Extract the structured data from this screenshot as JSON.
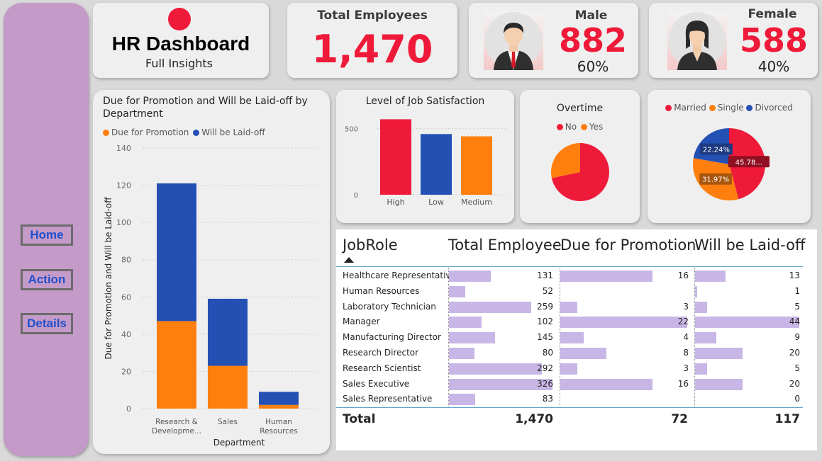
{
  "nav": {
    "home": "Home",
    "action": "Action",
    "details": "Details"
  },
  "header": {
    "title": "HR Dashboard",
    "subtitle": "Full Insights"
  },
  "kpi": {
    "total_label": "Total Employees",
    "total_value": "1,470",
    "male_label": "Male",
    "male_value": "882",
    "male_pct": "60%",
    "female_label": "Female",
    "female_value": "588",
    "female_pct": "40%"
  },
  "colors": {
    "red": "#ef1a39",
    "blue": "#2450b4",
    "orange": "#ff7f0e",
    "bar_lavender": "#c8b6e6",
    "sidebar": "#c49ac9"
  },
  "chart_data": [
    {
      "type": "bar",
      "stacked": true,
      "title": "Due for Promotion and Will be Laid-off by Department",
      "xlabel": "Department",
      "ylabel": "Due for Promotion and Will be Laid-off",
      "categories": [
        "Research & Developme...",
        "Sales",
        "Human Resources"
      ],
      "series": [
        {
          "name": "Due for Promotion",
          "values": [
            47,
            23,
            2
          ]
        },
        {
          "name": "Will be Laid-off",
          "values": [
            74,
            36,
            7
          ]
        }
      ],
      "ylim": [
        0,
        140
      ],
      "yticks": [
        0,
        20,
        40,
        60,
        80,
        100,
        120,
        140
      ],
      "grid": true,
      "legend": "top-left"
    },
    {
      "type": "bar",
      "title": "Level of Job Satisfaction",
      "categories": [
        "High",
        "Low",
        "Medium"
      ],
      "values": [
        571,
        459,
        442
      ],
      "yticks": [
        0,
        500
      ],
      "ylim": [
        0,
        600
      ],
      "grid": true
    },
    {
      "type": "pie",
      "title": "Overtime",
      "labels": [
        "No",
        "Yes"
      ],
      "values": [
        1054,
        416
      ],
      "legend": "top"
    },
    {
      "type": "pie",
      "title": "",
      "labels": [
        "Married",
        "Single",
        "Divorced"
      ],
      "values": [
        45.78,
        31.97,
        22.24
      ],
      "data_labels": [
        "45.78...",
        "31.97%",
        "22.24%"
      ],
      "legend": "top"
    }
  ],
  "table": {
    "headers": [
      "JobRole",
      "Total Employee",
      "Due for Promotion",
      "Will be Laid-off"
    ],
    "rows": [
      {
        "role": "Healthcare Representative",
        "total": 131,
        "promo": 16,
        "laid": 13
      },
      {
        "role": "Human Resources",
        "total": 52,
        "promo": null,
        "laid": 1
      },
      {
        "role": "Laboratory Technician",
        "total": 259,
        "promo": 3,
        "laid": 5
      },
      {
        "role": "Manager",
        "total": 102,
        "promo": 22,
        "laid": 44
      },
      {
        "role": "Manufacturing Director",
        "total": 145,
        "promo": 4,
        "laid": 9
      },
      {
        "role": "Research Director",
        "total": 80,
        "promo": 8,
        "laid": 20
      },
      {
        "role": "Research Scientist",
        "total": 292,
        "promo": 3,
        "laid": 5
      },
      {
        "role": "Sales Executive",
        "total": 326,
        "promo": 16,
        "laid": 20
      },
      {
        "role": "Sales Representative",
        "total": 83,
        "promo": null,
        "laid": 0
      }
    ],
    "totals": {
      "label": "Total",
      "total": "1,470",
      "promo": "72",
      "laid": "117"
    }
  }
}
